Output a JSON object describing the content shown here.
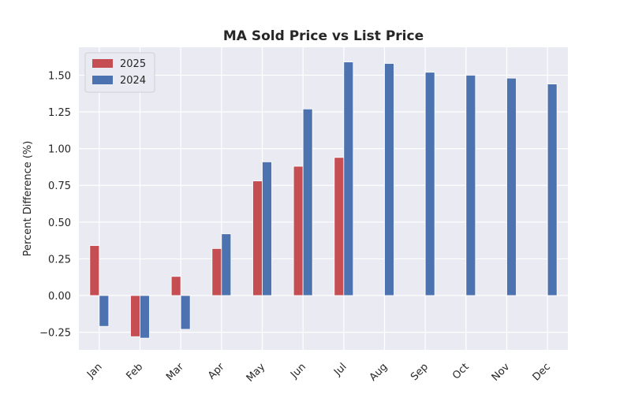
{
  "chart_data": {
    "type": "bar",
    "title": "MA Sold Price vs List Price",
    "xlabel": "",
    "ylabel": "Percent Difference (%)",
    "categories": [
      "Jan",
      "Feb",
      "Mar",
      "Apr",
      "May",
      "Jun",
      "Jul",
      "Aug",
      "Sep",
      "Oct",
      "Nov",
      "Dec"
    ],
    "series": [
      {
        "name": "2025",
        "color": "#c44e52",
        "values": [
          0.34,
          -0.28,
          0.13,
          0.32,
          0.78,
          0.88,
          0.94,
          null,
          null,
          null,
          null,
          null
        ]
      },
      {
        "name": "2024",
        "color": "#4c72b0",
        "values": [
          -0.21,
          -0.29,
          -0.23,
          0.42,
          0.91,
          1.27,
          1.59,
          1.58,
          1.52,
          1.5,
          1.48,
          1.44
        ]
      }
    ],
    "ylim": [
      -0.37,
      1.69
    ],
    "yticks": [
      -0.25,
      0.0,
      0.25,
      0.5,
      0.75,
      1.0,
      1.25,
      1.5
    ],
    "ytick_labels": [
      "−0.25",
      "0.00",
      "0.25",
      "0.50",
      "0.75",
      "1.00",
      "1.25",
      "1.50"
    ],
    "grid": true,
    "legend_position": "top-left",
    "background_color": "#eaeaf2",
    "grid_color": "#ffffff"
  }
}
